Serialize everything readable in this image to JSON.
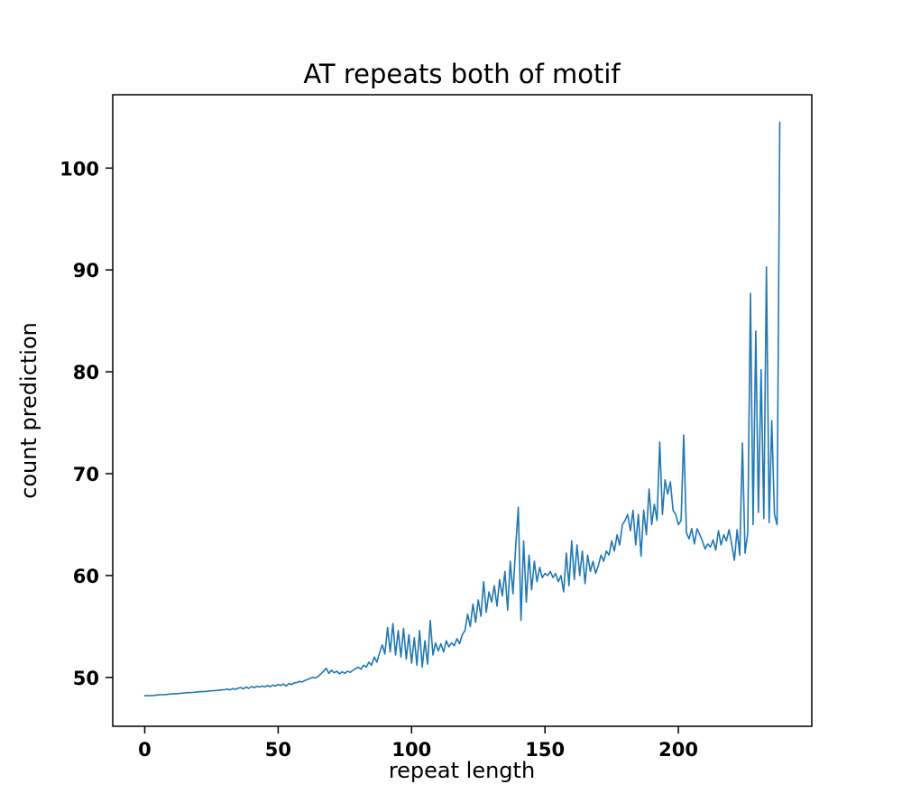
{
  "chart_data": {
    "type": "line",
    "title": "AT repeats both of motif",
    "xlabel": "repeat length",
    "ylabel": "count prediction",
    "line_color": "#1f77b4",
    "background_color": "#ffffff",
    "grid": false,
    "legend": false,
    "xlim": [
      -12,
      250
    ],
    "ylim": [
      45.2,
      107.2
    ],
    "x_ticks": [
      0,
      50,
      100,
      150,
      200
    ],
    "y_ticks": [
      50,
      60,
      70,
      80,
      90,
      100
    ],
    "x_start": 0,
    "x_step": 1,
    "values": [
      48.2,
      48.2,
      48.2,
      48.22,
      48.25,
      48.27,
      48.3,
      48.3,
      48.32,
      48.35,
      48.38,
      48.4,
      48.4,
      48.42,
      48.45,
      48.48,
      48.5,
      48.5,
      48.52,
      48.55,
      48.58,
      48.6,
      48.6,
      48.63,
      48.65,
      48.68,
      48.7,
      48.72,
      48.75,
      48.78,
      48.8,
      48.85,
      48.78,
      48.9,
      48.82,
      48.95,
      49.0,
      48.88,
      49.05,
      48.92,
      49.1,
      49.0,
      49.12,
      49.05,
      49.15,
      49.08,
      49.2,
      49.1,
      49.25,
      49.15,
      49.3,
      49.2,
      49.35,
      49.15,
      49.4,
      49.3,
      49.45,
      49.5,
      49.6,
      49.55,
      49.7,
      49.8,
      49.9,
      50.0,
      49.95,
      50.1,
      50.35,
      50.6,
      50.9,
      50.4,
      50.7,
      50.45,
      50.6,
      50.35,
      50.55,
      50.4,
      50.6,
      50.5,
      50.7,
      50.85,
      51.0,
      50.8,
      51.2,
      51.0,
      51.5,
      51.2,
      52.0,
      51.5,
      52.4,
      53.2,
      52.3,
      54.9,
      52.5,
      55.3,
      52.2,
      54.6,
      52.0,
      54.8,
      51.8,
      54.2,
      51.4,
      53.9,
      51.2,
      54.6,
      51.0,
      53.6,
      51.3,
      55.6,
      52.2,
      53.4,
      52.6,
      53.3,
      52.5,
      53.6,
      53.0,
      53.4,
      53.1,
      53.8,
      53.3,
      54.2,
      54.6,
      56.2,
      55.0,
      57.2,
      55.4,
      57.6,
      56.0,
      59.4,
      56.4,
      58.4,
      57.4,
      59.0,
      57.0,
      59.6,
      58.0,
      60.4,
      56.6,
      61.4,
      58.2,
      62.8,
      66.7,
      55.6,
      63.4,
      57.4,
      62.0,
      58.6,
      61.4,
      59.4,
      60.8,
      59.8,
      60.2,
      60.0,
      60.4,
      59.8,
      60.2,
      59.4,
      60.0,
      58.4,
      62.2,
      59.0,
      63.4,
      59.6,
      63.0,
      60.0,
      62.4,
      59.2,
      62.0,
      60.4,
      61.4,
      60.2,
      61.0,
      62.0,
      61.4,
      62.4,
      62.0,
      63.4,
      62.4,
      64.0,
      63.0,
      65.0,
      65.4,
      66.0,
      64.4,
      66.4,
      63.0,
      66.0,
      61.9,
      66.4,
      64.0,
      68.5,
      65.0,
      67.0,
      65.4,
      73.1,
      66.0,
      69.4,
      68.0,
      69.2,
      66.4,
      66.0,
      65.0,
      65.4,
      73.8,
      64.2,
      63.6,
      64.6,
      63.1,
      64.6,
      64.0,
      63.4,
      62.6,
      63.1,
      62.8,
      63.5,
      62.5,
      64.4,
      63.0,
      64.0,
      63.4,
      64.5,
      63.0,
      61.5,
      64.5,
      62.0,
      73.0,
      62.2,
      64.2,
      87.7,
      65.0,
      84.0,
      66.2,
      80.2,
      65.6,
      90.3,
      65.2,
      75.2,
      66.0,
      65.0,
      104.5
    ]
  }
}
